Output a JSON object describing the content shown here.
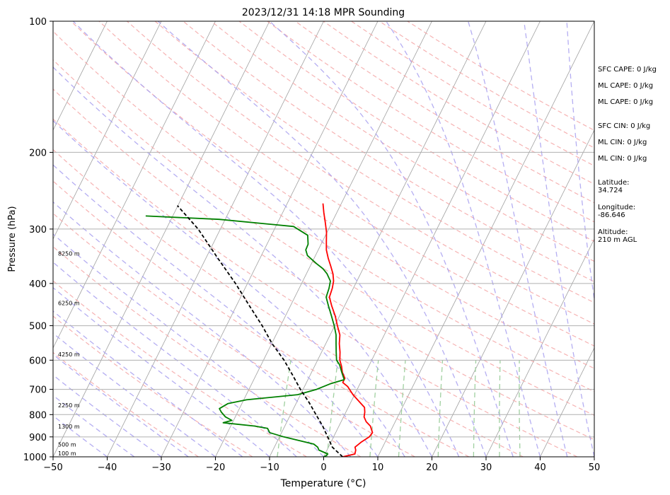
{
  "chart_data": {
    "type": "line",
    "subtype": "skew-T log-P sounding",
    "title": "2023/12/31 14:18 MPR Sounding",
    "xlabel": "Temperature (°C)",
    "ylabel": "Pressure (hPa)",
    "xlim": [
      -50,
      50
    ],
    "ylim": [
      1000,
      100
    ],
    "y_scale": "log",
    "x_ticks": [
      -50,
      -40,
      -30,
      -20,
      -10,
      0,
      10,
      20,
      30,
      40,
      50
    ],
    "x_tick_labels": [
      "−50",
      "−40",
      "−30",
      "−20",
      "−10",
      "0",
      "10",
      "20",
      "30",
      "40",
      "50"
    ],
    "y_ticks": [
      1000,
      900,
      800,
      700,
      600,
      500,
      400,
      300,
      200,
      100
    ],
    "y_tick_labels": [
      "1000",
      "900",
      "800",
      "700",
      "600",
      "500",
      "400",
      "300",
      "200",
      "100"
    ],
    "grid": true,
    "background_lines": {
      "dry_adiabats_color": "#f4a0a0",
      "moist_adiabats_color": "#a8a0f0",
      "mixing_ratio_color": "#a0d0a0",
      "isotherm_color": "#a0a0a0"
    },
    "series": [
      {
        "role": "temperature",
        "color": "#ff0000",
        "points": [
          {
            "p": 1000,
            "t": 3.5
          },
          {
            "p": 985,
            "t": 5.5
          },
          {
            "p": 965,
            "t": 5.3
          },
          {
            "p": 950,
            "t": 4.9
          },
          {
            "p": 925,
            "t": 5.6
          },
          {
            "p": 900,
            "t": 6.6
          },
          {
            "p": 880,
            "t": 6.8
          },
          {
            "p": 850,
            "t": 5.8
          },
          {
            "p": 830,
            "t": 4.6
          },
          {
            "p": 810,
            "t": 3.8
          },
          {
            "p": 790,
            "t": 3.5
          },
          {
            "p": 770,
            "t": 3.0
          },
          {
            "p": 750,
            "t": 1.7
          },
          {
            "p": 720,
            "t": -0.3
          },
          {
            "p": 690,
            "t": -2.0
          },
          {
            "p": 675,
            "t": -3.3
          },
          {
            "p": 660,
            "t": -3.3
          },
          {
            "p": 640,
            "t": -4.3
          },
          {
            "p": 620,
            "t": -5.0
          },
          {
            "p": 600,
            "t": -5.9
          },
          {
            "p": 575,
            "t": -6.6
          },
          {
            "p": 550,
            "t": -7.5
          },
          {
            "p": 525,
            "t": -8.2
          },
          {
            "p": 500,
            "t": -9.5
          },
          {
            "p": 475,
            "t": -10.8
          },
          {
            "p": 450,
            "t": -12.4
          },
          {
            "p": 430,
            "t": -13.6
          },
          {
            "p": 410,
            "t": -13.9
          },
          {
            "p": 395,
            "t": -14.3
          },
          {
            "p": 380,
            "t": -15.1
          },
          {
            "p": 365,
            "t": -16.2
          },
          {
            "p": 350,
            "t": -17.4
          },
          {
            "p": 335,
            "t": -18.5
          },
          {
            "p": 320,
            "t": -19.3
          },
          {
            "p": 305,
            "t": -20.1
          },
          {
            "p": 290,
            "t": -21.2
          },
          {
            "p": 275,
            "t": -22.4
          },
          {
            "p": 262,
            "t": -23.4
          }
        ]
      },
      {
        "role": "dewpoint",
        "color": "#008000",
        "points": [
          {
            "p": 1000,
            "t": 0.0
          },
          {
            "p": 995,
            "t": 0.3
          },
          {
            "p": 985,
            "t": 0.5
          },
          {
            "p": 965,
            "t": -1.5
          },
          {
            "p": 950,
            "t": -2.0
          },
          {
            "p": 935,
            "t": -3.0
          },
          {
            "p": 900,
            "t": -9.2
          },
          {
            "p": 880,
            "t": -12.2
          },
          {
            "p": 860,
            "t": -13.0
          },
          {
            "p": 850,
            "t": -15.6
          },
          {
            "p": 835,
            "t": -21.7
          },
          {
            "p": 825,
            "t": -20.3
          },
          {
            "p": 810,
            "t": -21.8
          },
          {
            "p": 790,
            "t": -23.0
          },
          {
            "p": 775,
            "t": -23.7
          },
          {
            "p": 755,
            "t": -22.6
          },
          {
            "p": 740,
            "t": -19.5
          },
          {
            "p": 720,
            "t": -10.5
          },
          {
            "p": 700,
            "t": -7.5
          },
          {
            "p": 680,
            "t": -5.5
          },
          {
            "p": 665,
            "t": -3.3
          },
          {
            "p": 640,
            "t": -4.4
          },
          {
            "p": 615,
            "t": -5.5
          },
          {
            "p": 600,
            "t": -6.5
          },
          {
            "p": 575,
            "t": -7.3
          },
          {
            "p": 550,
            "t": -8.1
          },
          {
            "p": 525,
            "t": -8.9
          },
          {
            "p": 500,
            "t": -10.1
          },
          {
            "p": 475,
            "t": -11.5
          },
          {
            "p": 450,
            "t": -13.0
          },
          {
            "p": 430,
            "t": -14.2
          },
          {
            "p": 410,
            "t": -14.5
          },
          {
            "p": 395,
            "t": -14.9
          },
          {
            "p": 380,
            "t": -16.2
          },
          {
            "p": 370,
            "t": -17.4
          },
          {
            "p": 360,
            "t": -19.1
          },
          {
            "p": 345,
            "t": -21.5
          },
          {
            "p": 335,
            "t": -22.3
          },
          {
            "p": 325,
            "t": -22.4
          },
          {
            "p": 310,
            "t": -23.3
          },
          {
            "p": 296,
            "t": -26.7
          },
          {
            "p": 285,
            "t": -41.1
          },
          {
            "p": 280,
            "t": -55.0
          }
        ]
      },
      {
        "role": "parcel",
        "color": "#000000",
        "style": "dashed",
        "points": [
          {
            "p": 1000,
            "t": 3.5
          },
          {
            "p": 950,
            "t": 0.7
          },
          {
            "p": 900,
            "t": -1.1
          },
          {
            "p": 850,
            "t": -3.0
          },
          {
            "p": 800,
            "t": -5.3
          },
          {
            "p": 750,
            "t": -7.7
          },
          {
            "p": 700,
            "t": -10.5
          },
          {
            "p": 650,
            "t": -13.2
          },
          {
            "p": 600,
            "t": -16.2
          },
          {
            "p": 550,
            "t": -19.9
          },
          {
            "p": 500,
            "t": -23.4
          },
          {
            "p": 450,
            "t": -27.6
          },
          {
            "p": 400,
            "t": -32.2
          },
          {
            "p": 350,
            "t": -37.8
          },
          {
            "p": 300,
            "t": -44.1
          },
          {
            "p": 265,
            "t": -50.1
          }
        ]
      }
    ],
    "height_annotations": [
      {
        "p": 1000,
        "text": "100 m"
      },
      {
        "p": 955,
        "text": "500 m"
      },
      {
        "p": 868,
        "text": "1300 m"
      },
      {
        "p": 775,
        "text": "2250 m"
      },
      {
        "p": 592,
        "text": "4250 m"
      },
      {
        "p": 452,
        "text": "6250 m"
      },
      {
        "p": 348,
        "text": "8250 m"
      }
    ]
  },
  "stats": [
    {
      "label": "SFC CAPE: 0 J/kg"
    },
    {
      "label": "ML CAPE: 0 J/kg"
    },
    {
      "label": "ML CAPE: 0 J/kg"
    },
    {
      "label": "SFC CIN: 0 J/kg"
    },
    {
      "label": "ML CIN: 0 J/kg"
    },
    {
      "label": "ML CIN: 0 J/kg"
    }
  ],
  "location": {
    "latitude_label": "Latitude:",
    "latitude_value": "34.724",
    "longitude_label": "Longitude:",
    "longitude_value": "-86.646",
    "altitude_label": "Altitude:",
    "altitude_value": "210 m AGL"
  }
}
